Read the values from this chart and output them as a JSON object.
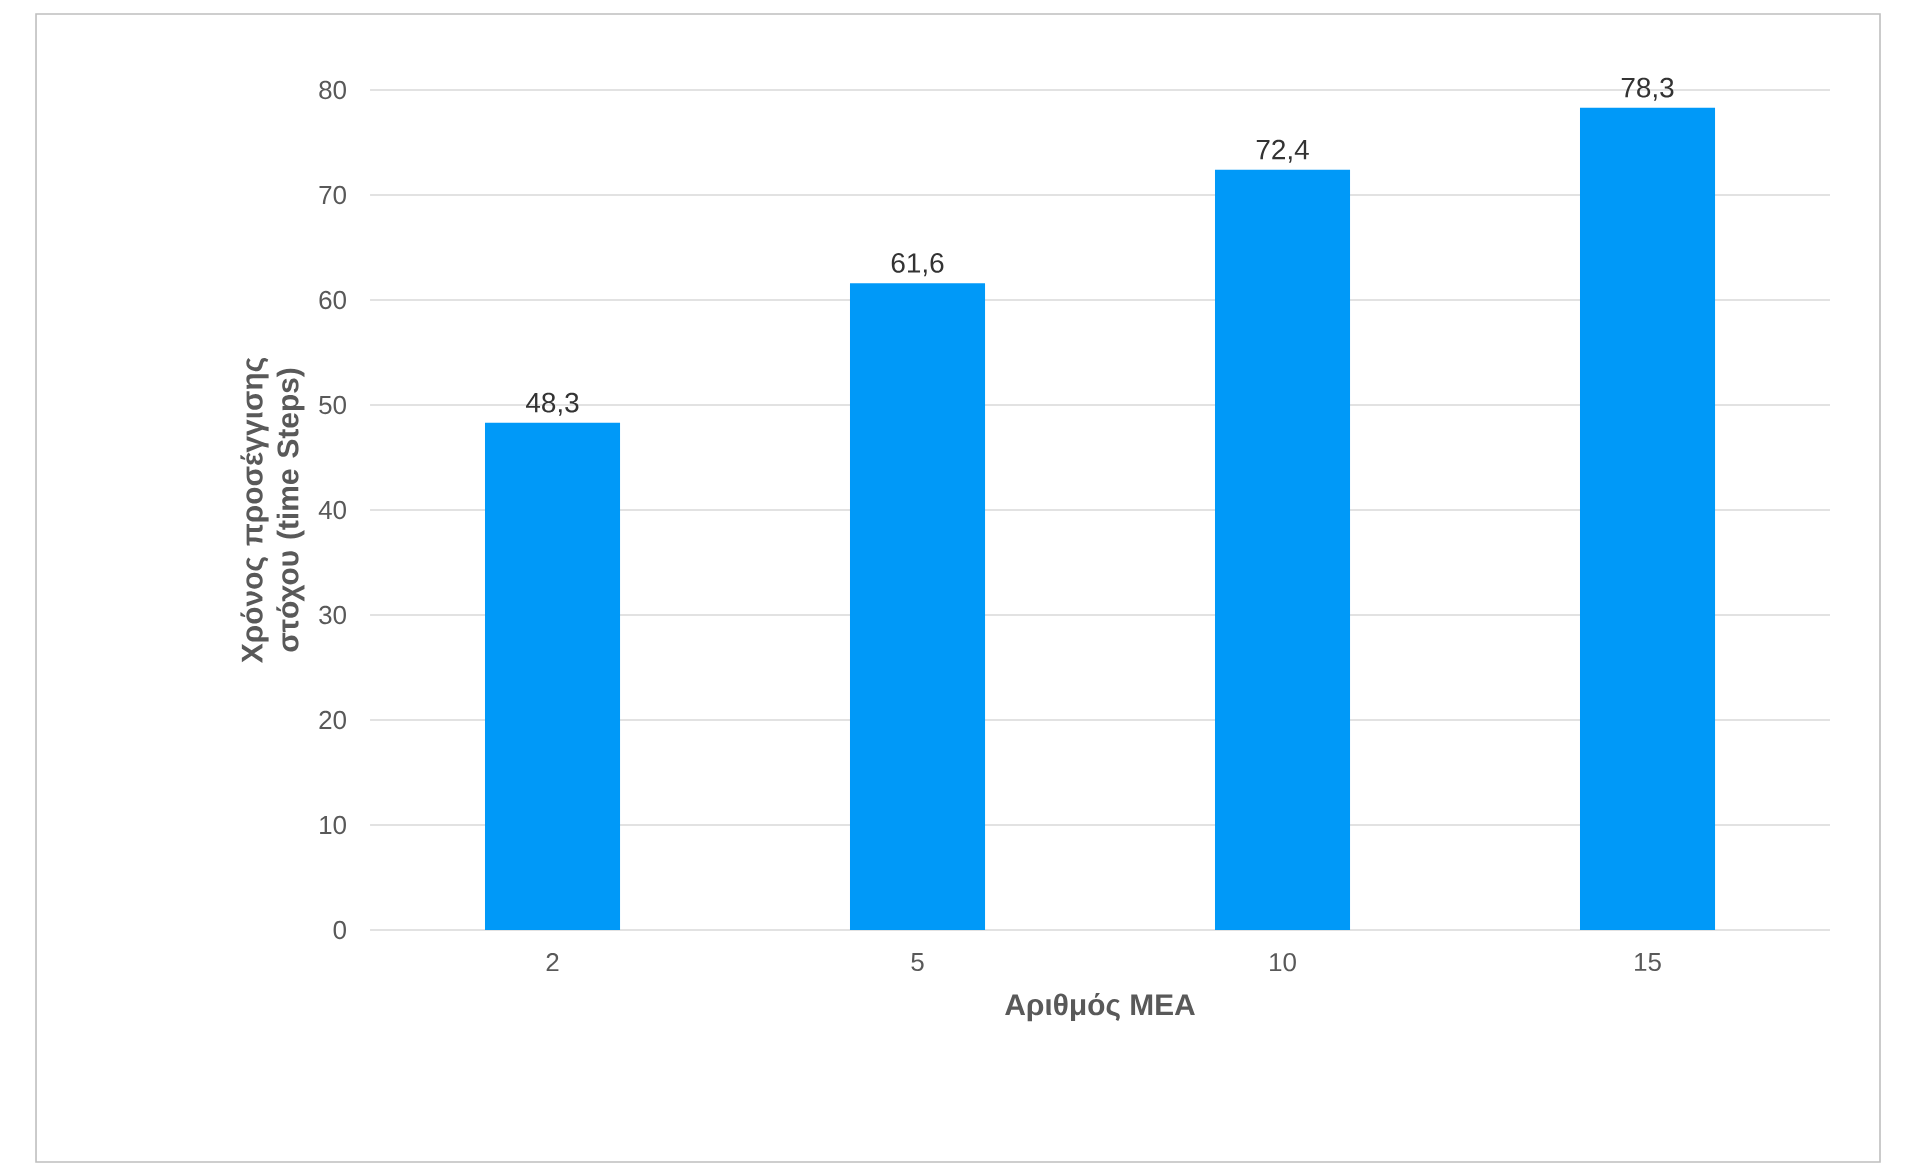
{
  "chart_data": {
    "type": "bar",
    "xlabel": "Αριθμός ΜΕΑ",
    "ylabel": "Χρόνος προσέγγισης στόχου (time Steps)",
    "categories": [
      "2",
      "5",
      "10",
      "15"
    ],
    "values": [
      48.3,
      61.6,
      72.4,
      78.3
    ],
    "value_labels": [
      "48,3",
      "61,6",
      "72,4",
      "78,3"
    ],
    "color": "#0099f8",
    "ylim": [
      0,
      80
    ],
    "yticks": [
      0,
      10,
      20,
      30,
      40,
      50,
      60,
      70,
      80
    ],
    "grid": "y"
  }
}
